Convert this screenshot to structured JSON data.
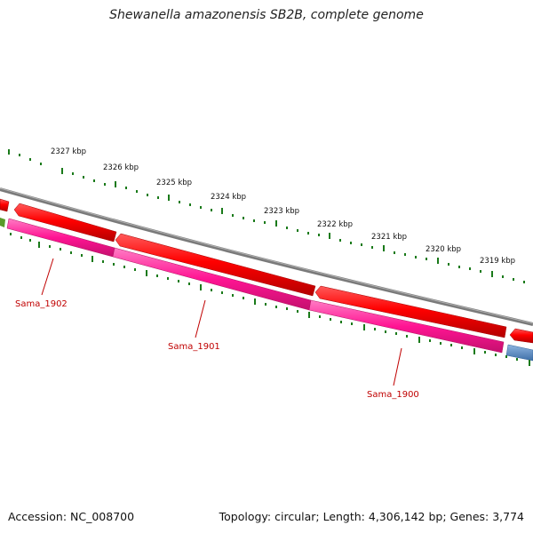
{
  "title": "Shewanella amazonensis SB2B, complete genome",
  "footer": {
    "accession": "Accession: NC_008700",
    "summary": "Topology: circular; Length: 4,306,142 bp; Genes: 3,774"
  },
  "colors": {
    "backbone": "#7a7a7a",
    "forward_gene": "#ff0000",
    "reverse_gene": "#ff1493",
    "other_gene": "#4f86c6",
    "tick": "#1a7a1a",
    "gene_label": "#c00000"
  },
  "scale_ticks": [
    "2327 kbp",
    "2326 kbp",
    "2325 kbp",
    "2324 kbp",
    "2323 kbp",
    "2322 kbp",
    "2321 kbp",
    "2320 kbp",
    "2319 kbp"
  ],
  "gene_labels": [
    "Sama_1902",
    "Sama_1901",
    "Sama_1900"
  ]
}
